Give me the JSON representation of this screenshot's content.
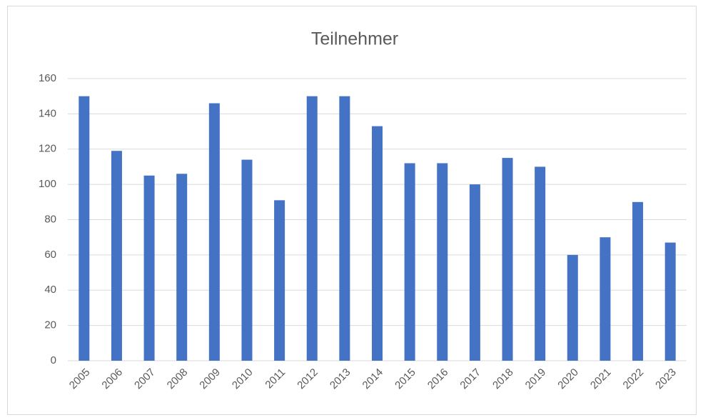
{
  "chart_data": {
    "type": "bar",
    "title": "Teilnehmer",
    "categories": [
      "2005",
      "2006",
      "2007",
      "2008",
      "2009",
      "2010",
      "2011",
      "2012",
      "2013",
      "2014",
      "2015",
      "2016",
      "2017",
      "2018",
      "2019",
      "2020",
      "2021",
      "2022",
      "2023"
    ],
    "values": [
      150,
      119,
      105,
      106,
      146,
      114,
      91,
      150,
      150,
      133,
      112,
      112,
      100,
      115,
      110,
      60,
      70,
      90,
      67
    ],
    "color": "#4472c4",
    "ylim": [
      0,
      160
    ],
    "yticks": [
      0,
      20,
      40,
      60,
      80,
      100,
      120,
      140,
      160
    ],
    "grid": true
  }
}
